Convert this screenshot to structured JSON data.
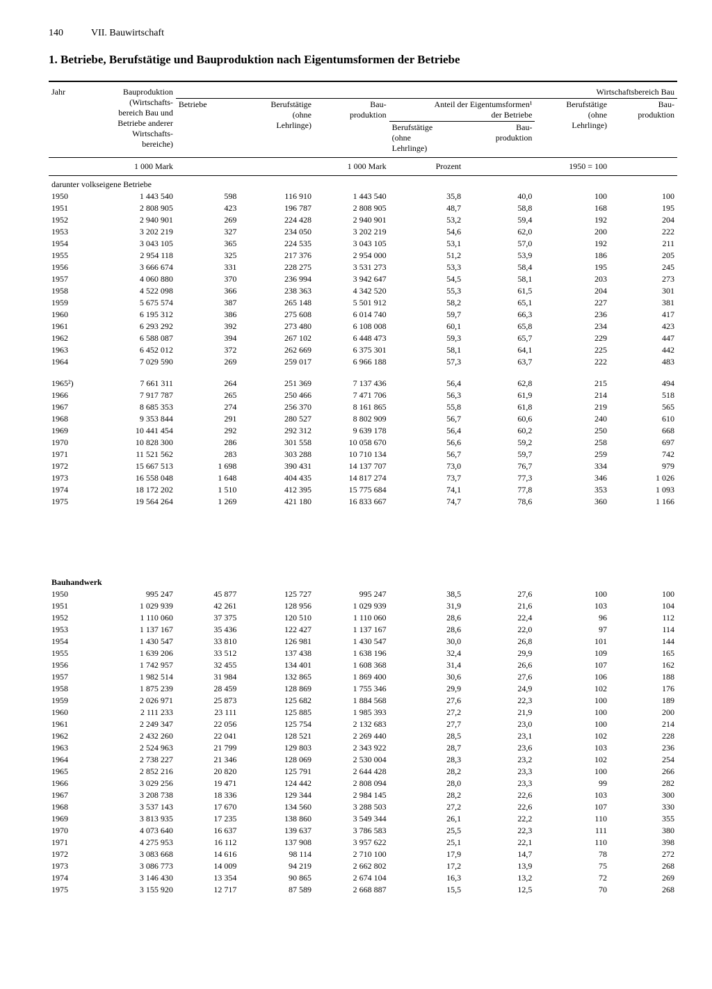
{
  "page": {
    "number": "140",
    "section": "VII. Bauwirtschaft"
  },
  "title": "1. Betriebe, Berufstätige und Bauproduktion nach Eigentumsformen der Betriebe",
  "headers": {
    "jahr": "Jahr",
    "bauprod_all": "Bauproduktion (Wirtschafts­bereich Bau und Betriebe anderer Wirtschafts­bereiche)",
    "wirtschaftsbereich": "Wirtschaftsbereich Bau",
    "betriebe": "Betriebe",
    "beruf": "Berufstätige (ohne Lehrlinge)",
    "bauprod": "Bau­produktion",
    "anteil": "Anteil der Eigentumsformen¹ der Betriebe",
    "beruf_p": "Berufstätige (ohne Lehrlinge)",
    "bauprod_p": "Bau­produktion",
    "beruf_i": "Berufstätige (ohne Lehrlinge)",
    "bauprod_i": "Bau­produktion"
  },
  "units": {
    "mark": "1 000 Mark",
    "prozent": "Prozent",
    "index": "1950 = 100"
  },
  "sections": [
    {
      "label": "darunter volkseigene Betriebe",
      "bold": false,
      "groups": [
        [
          [
            "1950",
            "1 443 540",
            "598",
            "116 910",
            "1 443 540",
            "35,8",
            "40,0",
            "100",
            "100"
          ],
          [
            "1951",
            "2 808 905",
            "423",
            "196 787",
            "2 808 905",
            "48,7",
            "58,8",
            "168",
            "195"
          ],
          [
            "1952",
            "2 940 901",
            "269",
            "224 428",
            "2 940 901",
            "53,2",
            "59,4",
            "192",
            "204"
          ],
          [
            "1953",
            "3 202 219",
            "327",
            "234 050",
            "3 202 219",
            "54,6",
            "62,0",
            "200",
            "222"
          ],
          [
            "1954",
            "3 043 105",
            "365",
            "224 535",
            "3 043 105",
            "53,1",
            "57,0",
            "192",
            "211"
          ],
          [
            "1955",
            "2 954 118",
            "325",
            "217 376",
            "2 954 000",
            "51,2",
            "53,9",
            "186",
            "205"
          ],
          [
            "1956",
            "3 666 674",
            "331",
            "228 275",
            "3 531 273",
            "53,3",
            "58,4",
            "195",
            "245"
          ],
          [
            "1957",
            "4 060 880",
            "370",
            "236 994",
            "3 942 647",
            "54,5",
            "58,1",
            "203",
            "273"
          ],
          [
            "1958",
            "4 522 098",
            "366",
            "238 363",
            "4 342 520",
            "55,3",
            "61,5",
            "204",
            "301"
          ],
          [
            "1959",
            "5 675 574",
            "387",
            "265 148",
            "5 501 912",
            "58,2",
            "65,1",
            "227",
            "381"
          ],
          [
            "1960",
            "6 195 312",
            "386",
            "275 608",
            "6 014 740",
            "59,7",
            "66,3",
            "236",
            "417"
          ],
          [
            "1961",
            "6 293 292",
            "392",
            "273 480",
            "6 108 008",
            "60,1",
            "65,8",
            "234",
            "423"
          ],
          [
            "1962",
            "6 588 087",
            "394",
            "267 102",
            "6 448 473",
            "59,3",
            "65,7",
            "229",
            "447"
          ],
          [
            "1963",
            "6 452 012",
            "372",
            "262 669",
            "6 375 301",
            "58,1",
            "64,1",
            "225",
            "442"
          ],
          [
            "1964",
            "7 029 590",
            "269",
            "259 017",
            "6 966 188",
            "57,3",
            "63,7",
            "222",
            "483"
          ]
        ],
        [
          [
            "1965²)",
            "7 661 311",
            "264",
            "251 369",
            "7 137 436",
            "56,4",
            "62,8",
            "215",
            "494"
          ],
          [
            "1966",
            "7 917 787",
            "265",
            "250 466",
            "7 471 706",
            "56,3",
            "61,9",
            "214",
            "518"
          ],
          [
            "1967",
            "8 685 353",
            "274",
            "256 370",
            "8 161 865",
            "55,8",
            "61,8",
            "219",
            "565"
          ],
          [
            "1968",
            "9 353 844",
            "291",
            "280 527",
            "8 802 909",
            "56,7",
            "60,6",
            "240",
            "610"
          ],
          [
            "1969",
            "10 441 454",
            "292",
            "292 312",
            "9 639 178",
            "56,4",
            "60,2",
            "250",
            "668"
          ],
          [
            "1970",
            "10 828 300",
            "286",
            "301 558",
            "10 058 670",
            "56,6",
            "59,2",
            "258",
            "697"
          ],
          [
            "1971",
            "11 521 562",
            "283",
            "303 288",
            "10 710 134",
            "56,7",
            "59,7",
            "259",
            "742"
          ],
          [
            "1972",
            "15 667 513",
            "1 698",
            "390 431",
            "14 137 707",
            "73,0",
            "76,7",
            "334",
            "979"
          ],
          [
            "1973",
            "16 558 048",
            "1 648",
            "404 435",
            "14 817 274",
            "73,7",
            "77,3",
            "346",
            "1 026"
          ],
          [
            "1974",
            "18 172 202",
            "1 510",
            "412 395",
            "15 775 684",
            "74,1",
            "77,8",
            "353",
            "1 093"
          ],
          [
            "1975",
            "19 564 264",
            "1 269",
            "421 180",
            "16 833 667",
            "74,7",
            "78,6",
            "360",
            "1 166"
          ]
        ]
      ]
    },
    {
      "label": "Bauhandwerk",
      "bold": true,
      "groups": [
        [
          [
            "1950",
            "995 247",
            "45 877",
            "125 727",
            "995 247",
            "38,5",
            "27,6",
            "100",
            "100"
          ],
          [
            "1951",
            "1 029 939",
            "42 261",
            "128 956",
            "1 029 939",
            "31,9",
            "21,6",
            "103",
            "104"
          ],
          [
            "1952",
            "1 110 060",
            "37 375",
            "120 510",
            "1 110 060",
            "28,6",
            "22,4",
            "96",
            "112"
          ],
          [
            "1953",
            "1 137 167",
            "35 436",
            "122 427",
            "1 137 167",
            "28,6",
            "22,0",
            "97",
            "114"
          ],
          [
            "1954",
            "1 430 547",
            "33 810",
            "126 981",
            "1 430 547",
            "30,0",
            "26,8",
            "101",
            "144"
          ],
          [
            "1955",
            "1 639 206",
            "33 512",
            "137 438",
            "1 638 196",
            "32,4",
            "29,9",
            "109",
            "165"
          ],
          [
            "1956",
            "1 742 957",
            "32 455",
            "134 401",
            "1 608 368",
            "31,4",
            "26,6",
            "107",
            "162"
          ],
          [
            "1957",
            "1 982 514",
            "31 984",
            "132 865",
            "1 869 400",
            "30,6",
            "27,6",
            "106",
            "188"
          ],
          [
            "1958",
            "1 875 239",
            "28 459",
            "128 869",
            "1 755 346",
            "29,9",
            "24,9",
            "102",
            "176"
          ],
          [
            "1959",
            "2 026 971",
            "25 873",
            "125 682",
            "1 884 568",
            "27,6",
            "22,3",
            "100",
            "189"
          ],
          [
            "1960",
            "2 111 233",
            "23 111",
            "125 885",
            "1 985 393",
            "27,2",
            "21,9",
            "100",
            "200"
          ],
          [
            "1961",
            "2 249 347",
            "22 056",
            "125 754",
            "2 132 683",
            "27,7",
            "23,0",
            "100",
            "214"
          ],
          [
            "1962",
            "2 432 260",
            "22 041",
            "128 521",
            "2 269 440",
            "28,5",
            "23,1",
            "102",
            "228"
          ],
          [
            "1963",
            "2 524 963",
            "21 799",
            "129 803",
            "2 343 922",
            "28,7",
            "23,6",
            "103",
            "236"
          ],
          [
            "1964",
            "2 738 227",
            "21 346",
            "128 069",
            "2 530 004",
            "28,3",
            "23,2",
            "102",
            "254"
          ],
          [
            "1965",
            "2 852 216",
            "20 820",
            "125 791",
            "2 644 428",
            "28,2",
            "23,3",
            "100",
            "266"
          ],
          [
            "1966",
            "3 029 256",
            "19 471",
            "124 442",
            "2 808 094",
            "28,0",
            "23,3",
            "99",
            "282"
          ],
          [
            "1967",
            "3 208 738",
            "18 336",
            "129 344",
            "2 984 145",
            "28,2",
            "22,6",
            "103",
            "300"
          ],
          [
            "1968",
            "3 537 143",
            "17 670",
            "134 560",
            "3 288 503",
            "27,2",
            "22,6",
            "107",
            "330"
          ],
          [
            "1969",
            "3 813 935",
            "17 235",
            "138 860",
            "3 549 344",
            "26,1",
            "22,2",
            "110",
            "355"
          ],
          [
            "1970",
            "4 073 640",
            "16 637",
            "139 637",
            "3 786 583",
            "25,5",
            "22,3",
            "111",
            "380"
          ],
          [
            "1971",
            "4 275 953",
            "16 112",
            "137 908",
            "3 957 622",
            "25,1",
            "22,1",
            "110",
            "398"
          ],
          [
            "1972",
            "3 083 668",
            "14 616",
            "98 114",
            "2 710 100",
            "17,9",
            "14,7",
            "78",
            "272"
          ],
          [
            "1973",
            "3 086 773",
            "14 009",
            "94 219",
            "2 662 802",
            "17,2",
            "13,9",
            "75",
            "268"
          ],
          [
            "1974",
            "3 146 430",
            "13 354",
            "90 865",
            "2 674 104",
            "16,3",
            "13,2",
            "72",
            "269"
          ],
          [
            "1975",
            "3 155 920",
            "12 717",
            "87 589",
            "2 668 887",
            "15,5",
            "12,5",
            "70",
            "268"
          ]
        ]
      ]
    }
  ]
}
